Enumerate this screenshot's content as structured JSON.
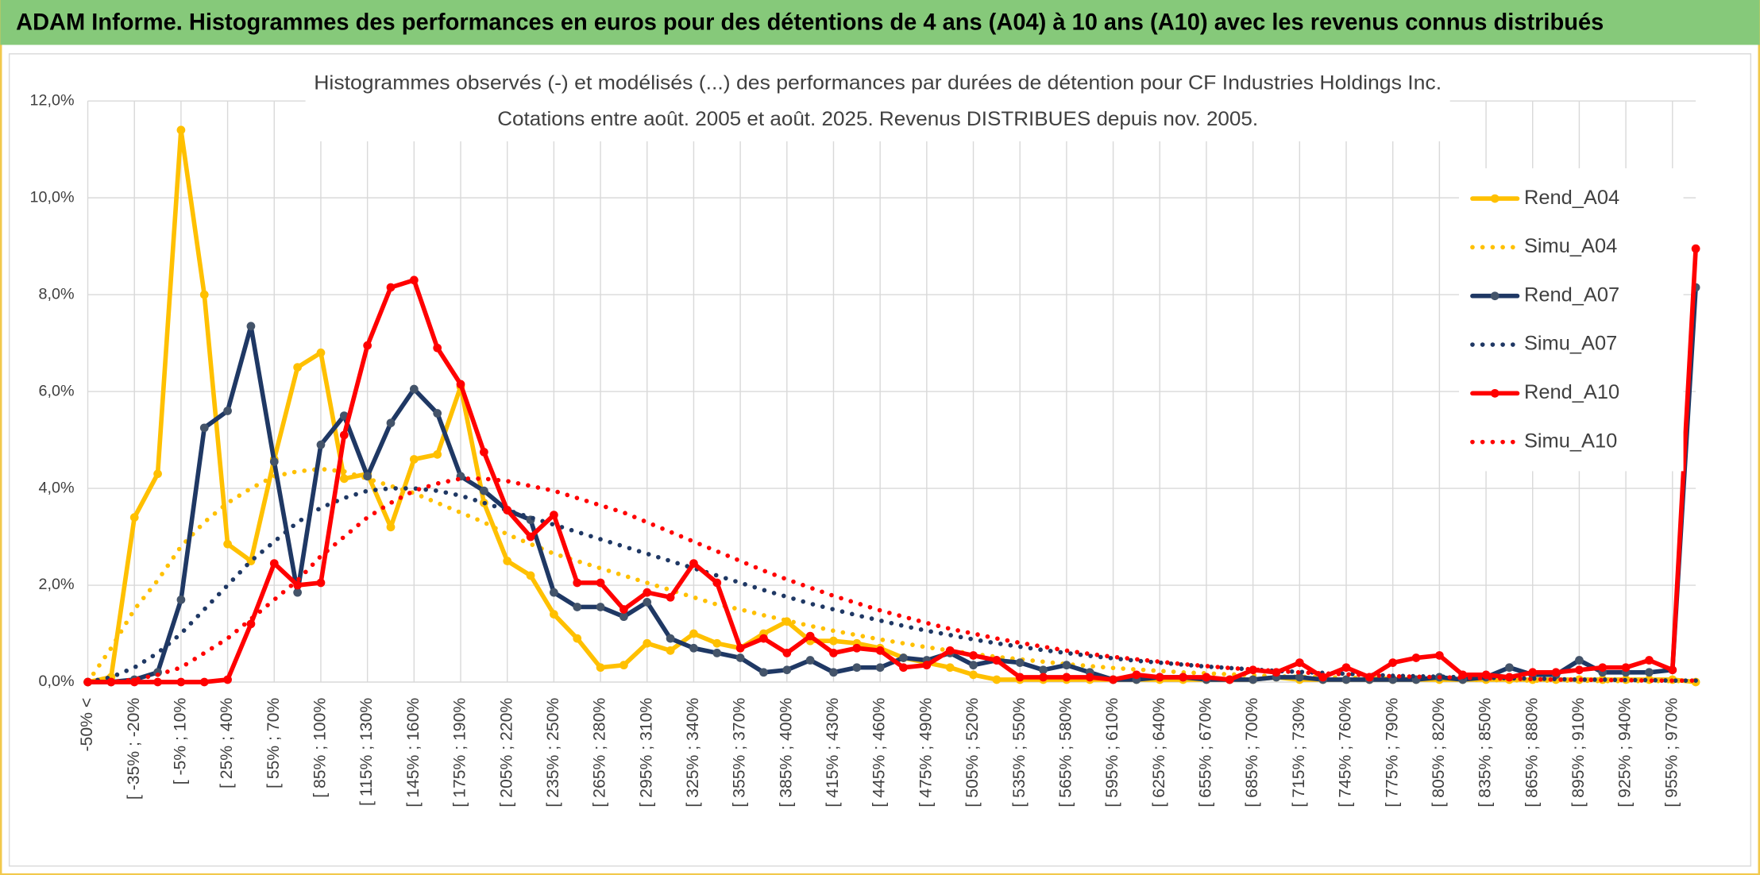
{
  "header": {
    "title": "ADAM Informe. Histogrammes des performances en euros pour des détentions de 4 ans (A04) à 10 ans (A10) avec les revenus connus distribués"
  },
  "chart_data": {
    "type": "line",
    "title": "Histogrammes observés (-) et modélisés (...) des performances par durées de détention pour CF Industries Holdings Inc.",
    "subtitle": "Cotations entre août. 2005 et août. 2025. Revenus DISTRIBUES depuis nov. 2005.",
    "categories": [
      "-50% <",
      null,
      "[ -35% ; -20%",
      null,
      "[ -5% ; 10%",
      null,
      "[ 25% ; 40%",
      null,
      "[ 55% ; 70%",
      null,
      "[ 85% ; 100%",
      null,
      "[ 115% ; 130%",
      null,
      "[ 145% ; 160%",
      null,
      "[ 175% ; 190%",
      null,
      "[ 205% ; 220%",
      null,
      "[ 235% ; 250%",
      null,
      "[ 265% ; 280%",
      null,
      "[ 295% ; 310%",
      null,
      "[ 325% ; 340%",
      null,
      "[ 355% ; 370%",
      null,
      "[ 385% ; 400%",
      null,
      "[ 415% ; 430%",
      null,
      "[ 445% ; 460%",
      null,
      "[ 475% ; 490%",
      null,
      "[ 505% ; 520%",
      null,
      "[ 535% ; 550%",
      null,
      "[ 565% ; 580%",
      null,
      "[ 595% ; 610%",
      null,
      "[ 625% ; 640%",
      null,
      "[ 655% ; 670%",
      null,
      "[ 685% ; 700%",
      null,
      "[ 715% ; 730%",
      null,
      "[ 745% ; 760%",
      null,
      "[ 775% ; 790%",
      null,
      "[ 805% ; 820%",
      null,
      "[ 835% ; 850%",
      null,
      "[ 865% ; 880%",
      null,
      "[ 895% ; 910%",
      null,
      "[ 925% ; 940%",
      null,
      "[ 955% ; 970%",
      null
    ],
    "series": [
      {
        "name": "Rend_A04",
        "color": "#FFC000",
        "style": "solid",
        "values": [
          0,
          0.1,
          3.4,
          4.3,
          11.4,
          8.0,
          2.85,
          2.5,
          4.6,
          6.5,
          6.8,
          4.2,
          4.3,
          3.2,
          4.6,
          4.7,
          6.1,
          3.7,
          2.5,
          2.2,
          1.4,
          0.9,
          0.3,
          0.35,
          0.8,
          0.65,
          1.0,
          0.8,
          0.7,
          1.0,
          1.25,
          0.85,
          0.85,
          0.8,
          0.7,
          0.5,
          0.4,
          0.3,
          0.15,
          0.05,
          0.05,
          0.05,
          0.05,
          0.05,
          0.05,
          0.05,
          0.05,
          0.05,
          0.05,
          0.05,
          0.05,
          0.1,
          0.05,
          0.05,
          0.05,
          0.05,
          0.05,
          0.05,
          0.05,
          0.05,
          0.05,
          0.05,
          0.05,
          0.05,
          0.05,
          0.05,
          0.05,
          0.05,
          0.05,
          0
        ]
      },
      {
        "name": "Simu_A04",
        "color": "#FFC000",
        "style": "dotted",
        "values": [
          0,
          0.7,
          1.5,
          2.1,
          2.8,
          3.3,
          3.7,
          4.0,
          4.25,
          4.35,
          4.4,
          4.35,
          4.2,
          4.05,
          3.9,
          3.7,
          3.5,
          3.3,
          3.05,
          2.85,
          2.65,
          2.5,
          2.35,
          2.2,
          2.05,
          1.9,
          1.75,
          1.6,
          1.5,
          1.38,
          1.27,
          1.16,
          1.06,
          0.97,
          0.88,
          0.8,
          0.72,
          0.65,
          0.58,
          0.52,
          0.47,
          0.42,
          0.37,
          0.33,
          0.29,
          0.26,
          0.23,
          0.2,
          0.18,
          0.16,
          0.14,
          0.12,
          0.11,
          0.1,
          0.09,
          0.08,
          0.07,
          0.06,
          0.05,
          0.05,
          0.04,
          0.04,
          0.03,
          0.03,
          0.03,
          0.02,
          0.02,
          0.02,
          0.02,
          0.02
        ]
      },
      {
        "name": "Rend_A07",
        "color": "#1F3864",
        "style": "solid",
        "values": [
          0,
          0,
          0.05,
          0.2,
          1.7,
          5.25,
          5.6,
          7.35,
          4.55,
          1.85,
          4.9,
          5.5,
          4.25,
          5.35,
          6.05,
          5.55,
          4.25,
          3.95,
          3.55,
          3.35,
          1.85,
          1.55,
          1.55,
          1.35,
          1.65,
          0.9,
          0.7,
          0.6,
          0.5,
          0.2,
          0.25,
          0.45,
          0.2,
          0.3,
          0.3,
          0.5,
          0.45,
          0.6,
          0.35,
          0.45,
          0.4,
          0.25,
          0.35,
          0.2,
          0.05,
          0.05,
          0.1,
          0.1,
          0.05,
          0.05,
          0.05,
          0.1,
          0.1,
          0.05,
          0.05,
          0.05,
          0.05,
          0.05,
          0.1,
          0.05,
          0.1,
          0.3,
          0.15,
          0.15,
          0.45,
          0.2,
          0.2,
          0.2,
          0.25,
          8.15
        ]
      },
      {
        "name": "Simu_A07",
        "color": "#1F3864",
        "style": "dotted",
        "values": [
          0,
          0.1,
          0.3,
          0.6,
          1.0,
          1.5,
          2.0,
          2.5,
          2.9,
          3.3,
          3.6,
          3.8,
          3.95,
          4.0,
          4.0,
          3.95,
          3.85,
          3.7,
          3.55,
          3.4,
          3.25,
          3.1,
          2.95,
          2.8,
          2.65,
          2.5,
          2.35,
          2.2,
          2.05,
          1.9,
          1.76,
          1.62,
          1.5,
          1.38,
          1.27,
          1.16,
          1.06,
          0.97,
          0.88,
          0.8,
          0.73,
          0.66,
          0.6,
          0.54,
          0.49,
          0.44,
          0.4,
          0.36,
          0.32,
          0.29,
          0.26,
          0.23,
          0.21,
          0.19,
          0.17,
          0.15,
          0.13,
          0.12,
          0.11,
          0.1,
          0.09,
          0.08,
          0.07,
          0.06,
          0.05,
          0.05,
          0.04,
          0.04,
          0.03,
          0.03
        ]
      },
      {
        "name": "Rend_A10",
        "color": "#FF0000",
        "style": "solid",
        "values": [
          0,
          0,
          0,
          0,
          0,
          0,
          0.05,
          1.2,
          2.45,
          2.0,
          2.05,
          5.1,
          6.95,
          8.15,
          8.3,
          6.9,
          6.15,
          4.75,
          3.55,
          3.0,
          3.45,
          2.05,
          2.05,
          1.5,
          1.85,
          1.75,
          2.45,
          2.05,
          0.7,
          0.9,
          0.6,
          0.95,
          0.6,
          0.7,
          0.65,
          0.3,
          0.35,
          0.65,
          0.55,
          0.45,
          0.1,
          0.1,
          0.1,
          0.1,
          0.05,
          0.15,
          0.1,
          0.1,
          0.1,
          0.05,
          0.25,
          0.2,
          0.4,
          0.1,
          0.3,
          0.1,
          0.4,
          0.5,
          0.55,
          0.15,
          0.15,
          0.1,
          0.2,
          0.2,
          0.25,
          0.3,
          0.3,
          0.45,
          0.25,
          8.95
        ]
      },
      {
        "name": "Simu_A10",
        "color": "#FF0000",
        "style": "dotted",
        "values": [
          0,
          0,
          0.05,
          0.15,
          0.3,
          0.6,
          0.9,
          1.3,
          1.7,
          2.1,
          2.6,
          3.0,
          3.4,
          3.7,
          3.95,
          4.1,
          4.2,
          4.2,
          4.15,
          4.05,
          3.95,
          3.8,
          3.65,
          3.5,
          3.3,
          3.1,
          2.9,
          2.7,
          2.5,
          2.3,
          2.12,
          1.95,
          1.78,
          1.63,
          1.48,
          1.35,
          1.22,
          1.1,
          1.0,
          0.9,
          0.81,
          0.73,
          0.65,
          0.58,
          0.52,
          0.47,
          0.42,
          0.37,
          0.33,
          0.29,
          0.26,
          0.23,
          0.2,
          0.18,
          0.16,
          0.14,
          0.12,
          0.11,
          0.1,
          0.09,
          0.08,
          0.07,
          0.06,
          0.05,
          0.05,
          0.04,
          0.04,
          0.03,
          0.03,
          0.03
        ]
      }
    ],
    "ylim": [
      0,
      12
    ],
    "yticks": [
      {
        "value": 0,
        "label": "0,0%"
      },
      {
        "value": 2,
        "label": "2,0%"
      },
      {
        "value": 4,
        "label": "4,0%"
      },
      {
        "value": 6,
        "label": "6,0%"
      },
      {
        "value": 8,
        "label": "8,0%"
      },
      {
        "value": 10,
        "label": "10,0%"
      },
      {
        "value": 12,
        "label": "12,0%"
      }
    ],
    "grid": true,
    "legend": "right"
  }
}
